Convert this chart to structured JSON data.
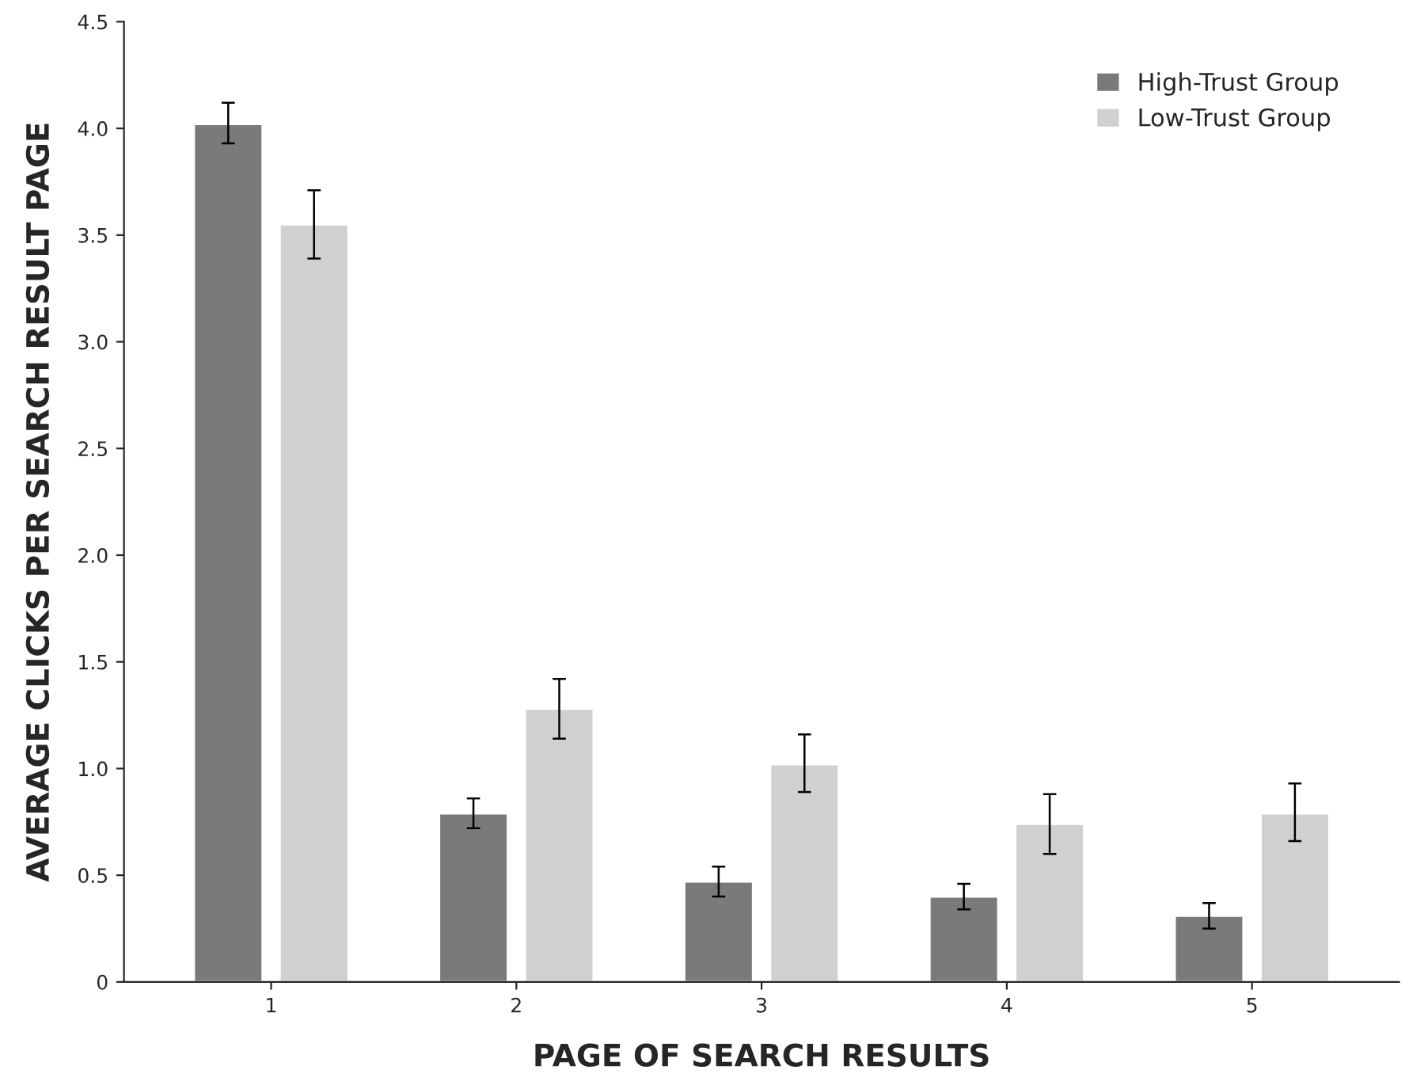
{
  "chart_data": {
    "type": "bar",
    "xlabel": "PAGE OF SEARCH RESULTS",
    "ylabel": "AVERAGE CLICKS PER SEARCH RESULT PAGE",
    "categories": [
      "1",
      "2",
      "3",
      "4",
      "5"
    ],
    "series": [
      {
        "name": "High-Trust Group",
        "color": "#7a7a7a",
        "values": [
          4.02,
          0.79,
          0.47,
          0.4,
          0.31
        ],
        "errors": [
          [
            3.93,
            4.12
          ],
          [
            0.72,
            0.86
          ],
          [
            0.4,
            0.54
          ],
          [
            0.34,
            0.46
          ],
          [
            0.25,
            0.37
          ]
        ]
      },
      {
        "name": "Low-Trust Group",
        "color": "#d0d0d0",
        "values": [
          3.55,
          1.28,
          1.02,
          0.74,
          0.79
        ],
        "errors": [
          [
            3.39,
            3.71
          ],
          [
            1.14,
            1.42
          ],
          [
            0.89,
            1.16
          ],
          [
            0.6,
            0.88
          ],
          [
            0.66,
            0.93
          ]
        ]
      }
    ],
    "ylim": [
      0,
      4.5
    ],
    "yticks": [
      {
        "value": 0,
        "label": "0"
      },
      {
        "value": 0.5,
        "label": "0.5"
      },
      {
        "value": 1,
        "label": "1.0"
      },
      {
        "value": 1.5,
        "label": "1.5"
      },
      {
        "value": 2,
        "label": "2.0"
      },
      {
        "value": 2.5,
        "label": "2.5"
      },
      {
        "value": 3,
        "label": "3.0"
      },
      {
        "value": 3.5,
        "label": "3.5"
      },
      {
        "value": 4,
        "label": "4.0"
      },
      {
        "value": 4.5,
        "label": "4.5"
      }
    ],
    "legend": "top right",
    "grid": false
  }
}
